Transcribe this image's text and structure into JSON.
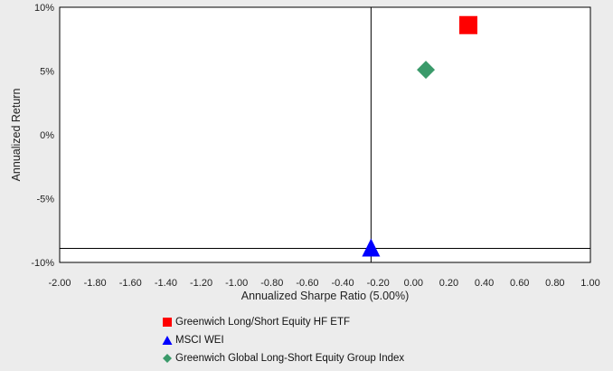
{
  "chart_data": {
    "type": "scatter",
    "title": "",
    "xlabel": "Annualized Sharpe Ratio (5.00%)",
    "ylabel": "Annualized Return",
    "xlim": [
      -2.0,
      1.0
    ],
    "ylim": [
      -10,
      10
    ],
    "x_ticks": [
      "-2.00",
      "-1.80",
      "-1.60",
      "-1.40",
      "-1.20",
      "-1.00",
      "-0.80",
      "-0.60",
      "-0.40",
      "-0.20",
      "0.00",
      "0.20",
      "0.40",
      "0.60",
      "0.80",
      "1.00"
    ],
    "x_tick_values": [
      -2.0,
      -1.8,
      -1.6,
      -1.4,
      -1.2,
      -1.0,
      -0.8,
      -0.6,
      -0.4,
      -0.2,
      0.0,
      0.2,
      0.4,
      0.6,
      0.8,
      1.0
    ],
    "y_ticks": [
      "10%",
      "5%",
      "0%",
      "-5%",
      "-10%"
    ],
    "y_tick_values": [
      10,
      5,
      0,
      -5,
      -10
    ],
    "reference_lines": {
      "x": -0.24,
      "y": -8.9
    },
    "grid": false,
    "legend_position": "bottom",
    "series": [
      {
        "name": "Greenwich Long/Short Equity HF ETF",
        "marker": "square",
        "color": "#ff0000",
        "x": 0.31,
        "y": 8.6
      },
      {
        "name": "MSCI WEI",
        "marker": "triangle",
        "color": "#0000ff",
        "x": -0.24,
        "y": -8.9
      },
      {
        "name": "Greenwich Global Long-Short Equity Group Index",
        "marker": "diamond",
        "color": "#3a9a6a",
        "x": 0.07,
        "y": 5.1
      }
    ]
  },
  "legend": {
    "items": [
      {
        "label": "Greenwich Long/Short Equity HF ETF",
        "color": "#ff0000"
      },
      {
        "label": "MSCI WEI",
        "color": "#0000ff"
      },
      {
        "label": "Greenwich Global Long-Short Equity Group Index",
        "color": "#3a9a6a"
      }
    ]
  }
}
